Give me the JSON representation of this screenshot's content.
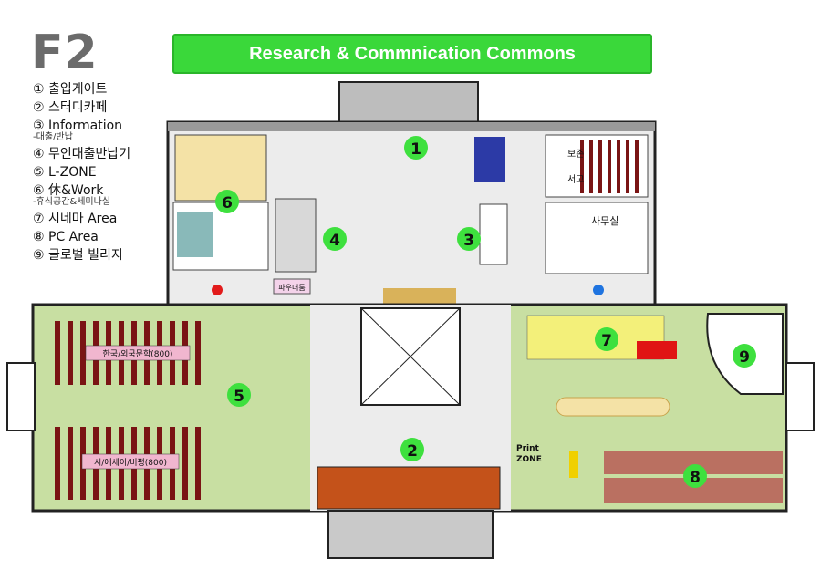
{
  "floor": "F2",
  "banner": "Research & Commnication Commons",
  "legend": {
    "item1": "① 출입게이트",
    "item2": "② 스터디카페",
    "item3": "③ Information",
    "item3_sub": "-대출/반납",
    "item4": "④ 무인대출반납기",
    "item5": "⑤ L-ZONE",
    "item6": "⑥ 休&Work",
    "item6_sub": "-휴식공간&세미나실",
    "item7": "⑦ 시네마 Area",
    "item8": "⑧ PC Area",
    "item9": "⑨ 글로벌 빌리지"
  },
  "map_labels": {
    "storage": "보존서고",
    "office": "사무실",
    "powder_room": "파우더룸",
    "shelf_korean": "한국/외국문학(800)",
    "shelf_poetry": "시/에세이/비평(800)",
    "print_zone_1": "Print",
    "print_zone_2": "ZONE"
  },
  "markers": [
    "1",
    "2",
    "3",
    "4",
    "5",
    "6",
    "7",
    "8",
    "9"
  ],
  "colors": {
    "marker": "#3ee03e",
    "banner": "#3ad83a",
    "floor": "#ececec",
    "zone_green": "#c8dfa2",
    "wall": "#222222",
    "shelf": "#7a1414"
  }
}
